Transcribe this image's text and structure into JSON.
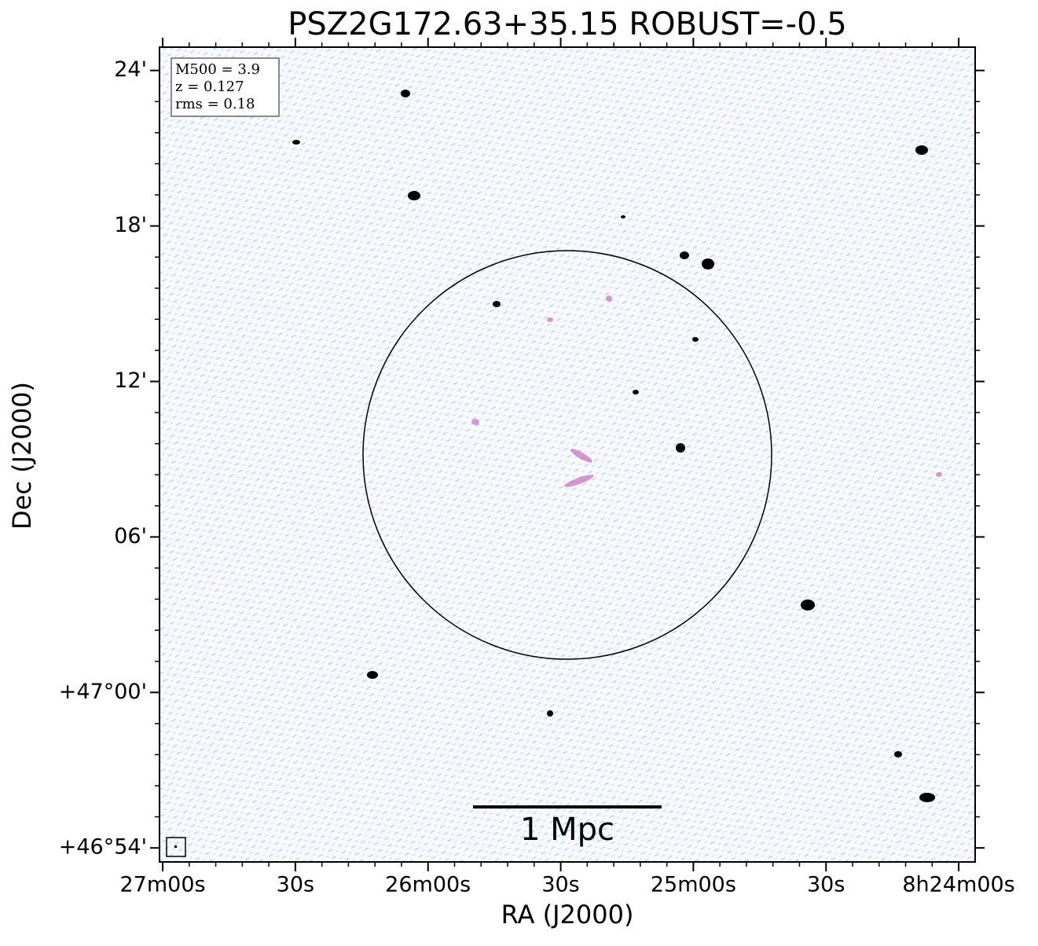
{
  "chart_data": {
    "type": "image",
    "title": "PSZ2G172.63+35.15 ROBUST=-0.5",
    "x_label": "RA (J2000)",
    "y_label": "Dec (J2000)",
    "xlim": [
      27.012,
      23.938
    ],
    "ylim": [
      46.891,
      47.415
    ],
    "xticks": [
      {
        "value": 27.0,
        "label": "27m00s"
      },
      {
        "value": 26.5,
        "label": "30s"
      },
      {
        "value": 26.0,
        "label": "26m00s"
      },
      {
        "value": 25.5,
        "label": "30s"
      },
      {
        "value": 25.0,
        "label": "25m00s"
      },
      {
        "value": 24.5,
        "label": "30s"
      },
      {
        "value": 24.0,
        "label": "8h24m00s"
      }
    ],
    "yticks": [
      {
        "value": 46.9,
        "label": "+46°54'"
      },
      {
        "value": 47.0,
        "label": "+47°00'"
      },
      {
        "value": 47.1,
        "label": "06'"
      },
      {
        "value": 47.2,
        "label": "12'"
      },
      {
        "value": 47.3,
        "label": "18'"
      },
      {
        "value": 47.4,
        "label": "24'"
      }
    ],
    "annotations": [
      "M500 = 3.9",
      "z = 0.127",
      "rms = 0.18"
    ],
    "scale_bar_label": "1 Mpc"
  }
}
